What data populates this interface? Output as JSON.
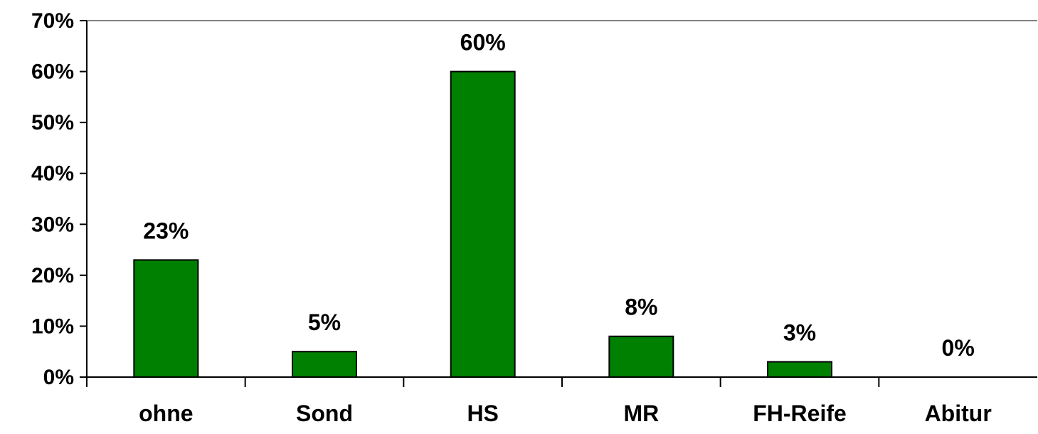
{
  "chart_data": {
    "type": "bar",
    "categories": [
      "ohne",
      "Sond",
      "HS",
      "MR",
      "FH-Reife",
      "Abitur"
    ],
    "values": [
      23,
      5,
      60,
      8,
      3,
      0
    ],
    "data_labels": [
      "23%",
      "5%",
      "60%",
      "8%",
      "3%",
      "0%"
    ],
    "title": "",
    "xlabel": "",
    "ylabel": "",
    "ylim": [
      0,
      70
    ],
    "y_ticks": [
      0,
      10,
      20,
      30,
      40,
      50,
      60,
      70
    ],
    "y_tick_labels": [
      "0%",
      "10%",
      "20%",
      "30%",
      "40%",
      "50%",
      "60%",
      "70%"
    ],
    "grid": false,
    "legend": "none",
    "colors": {
      "bar_fill": "#008000",
      "bar_stroke": "#000000",
      "axis": "#000000",
      "top_border": "#808080"
    }
  }
}
